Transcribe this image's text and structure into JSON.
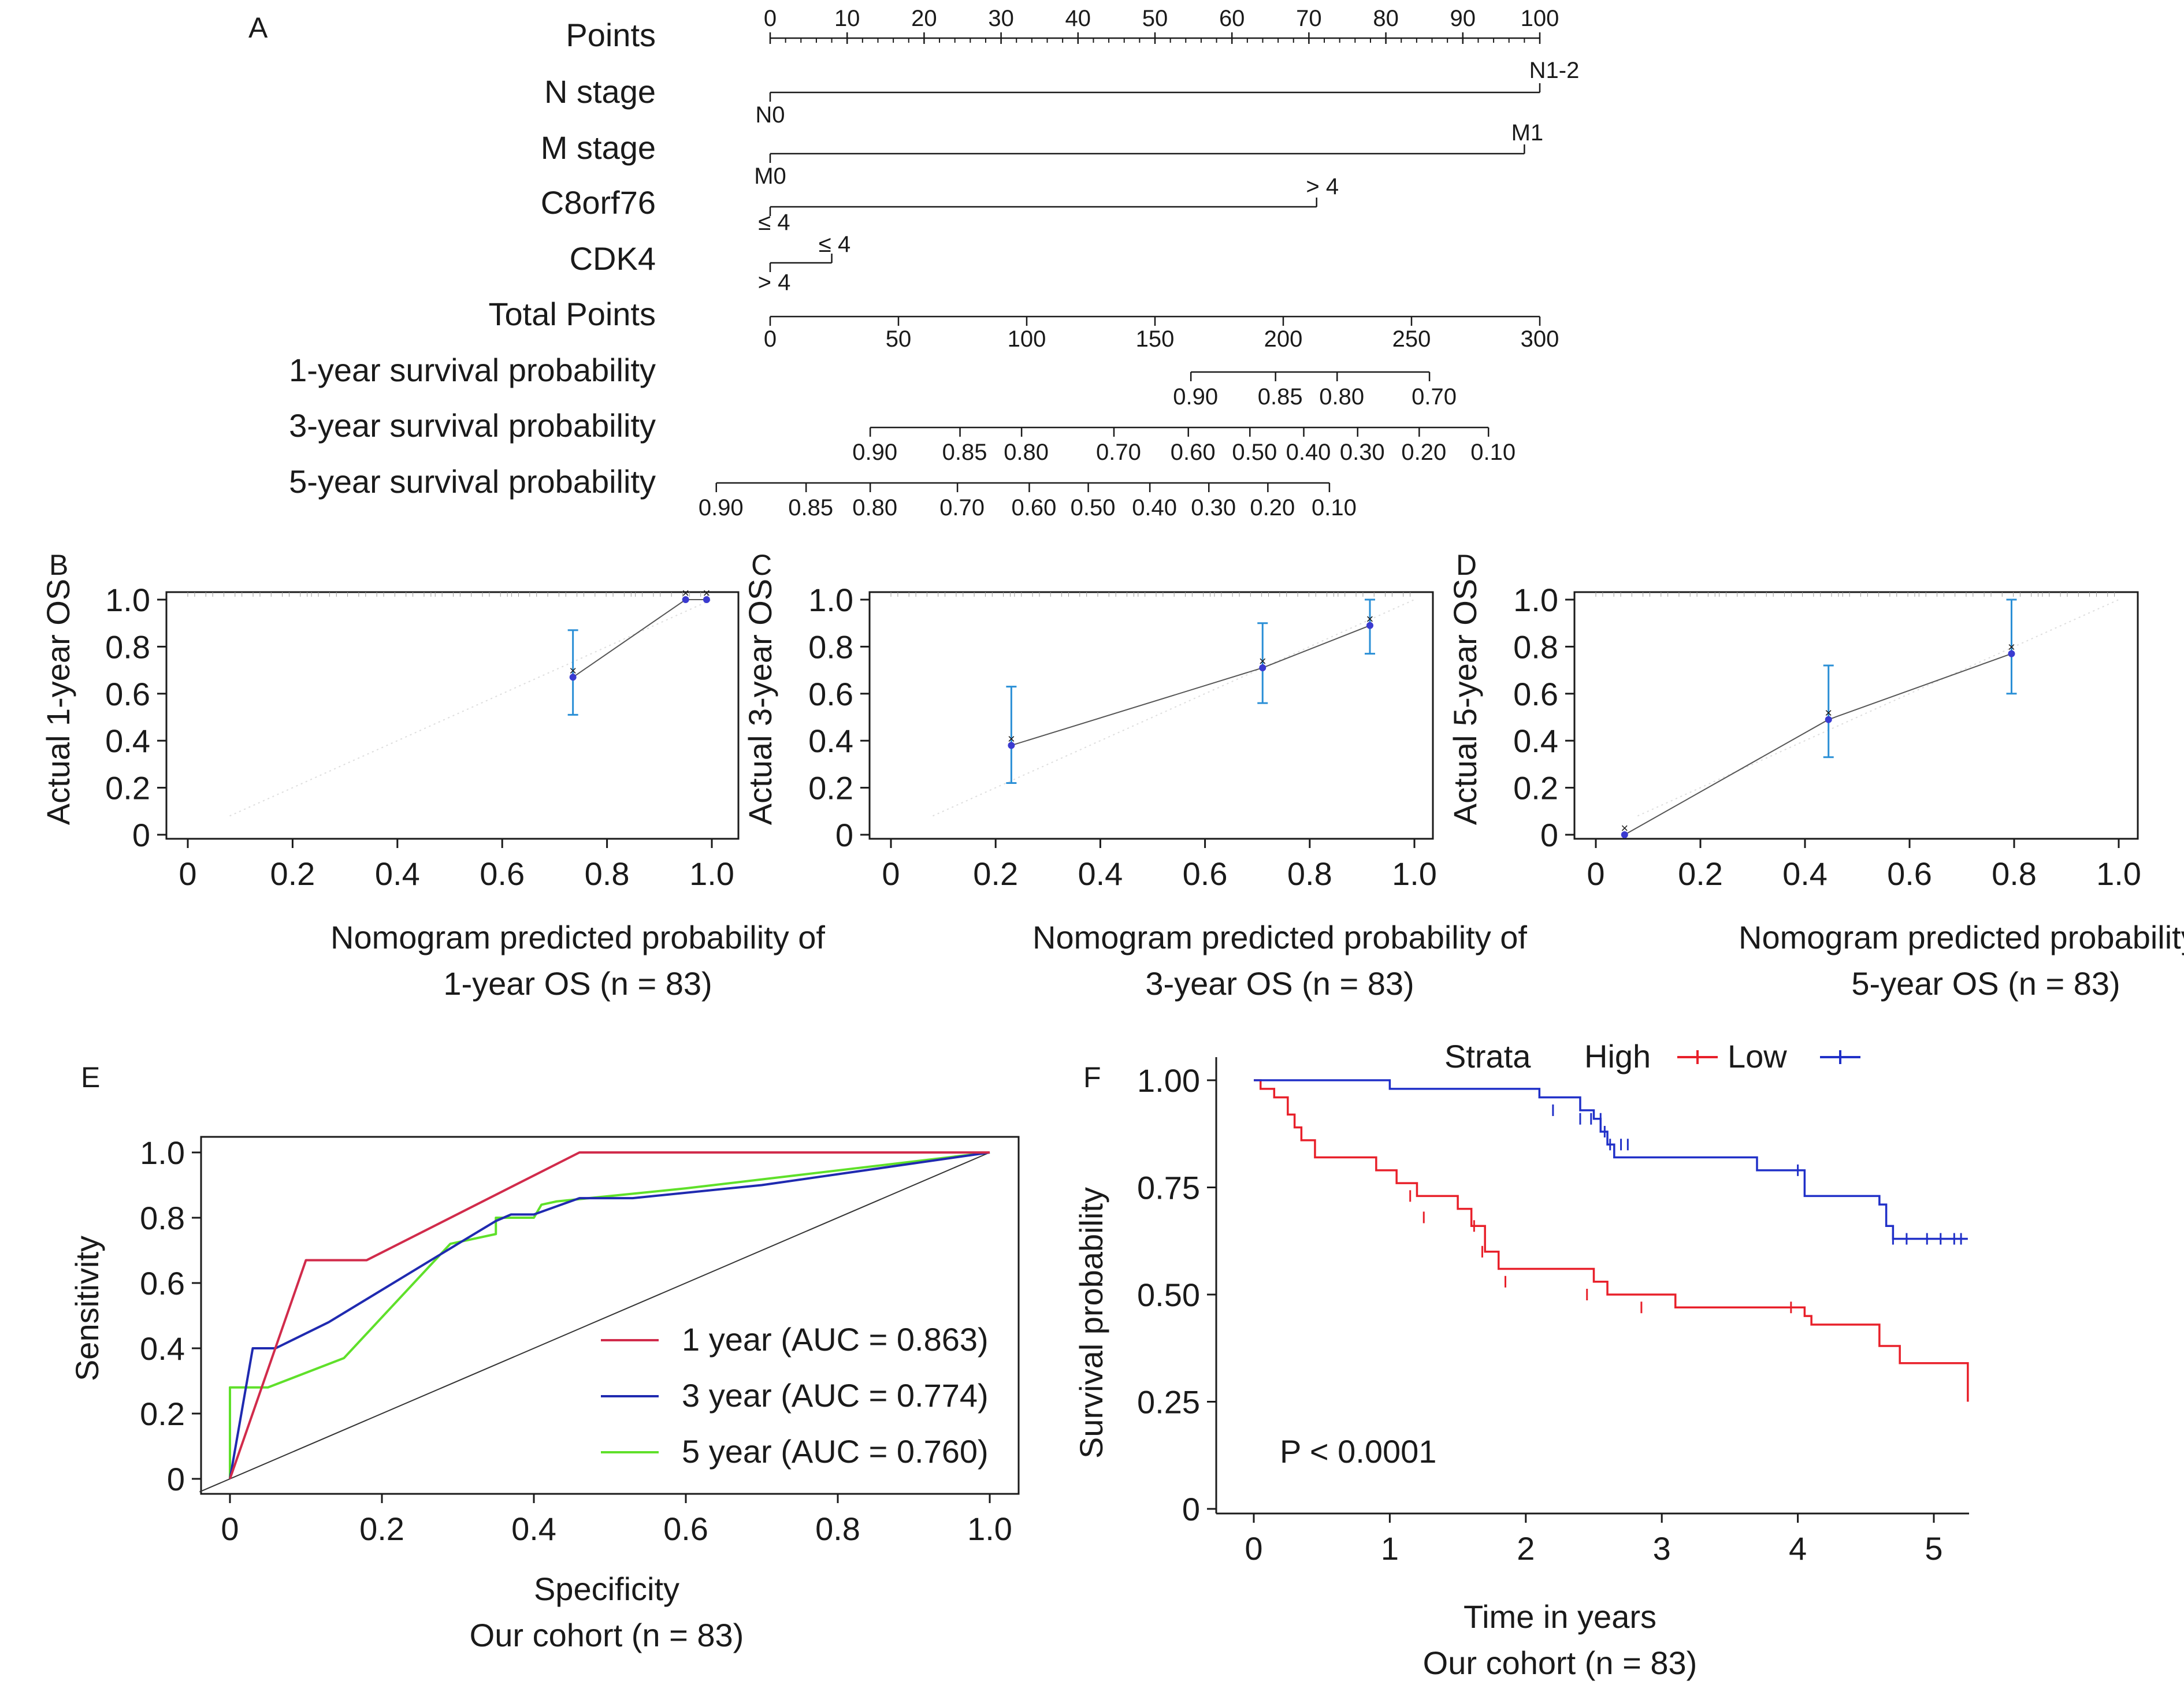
{
  "colors": {
    "ink": "#1a1a1a",
    "calib_bar": "#2a8fd6",
    "calib_point": "#3a3ad0",
    "roc_1yr": "#d12b4b",
    "roc_3yr": "#1f2ab0",
    "roc_5yr": "#5fe02a",
    "km_high": "#e8202a",
    "km_low": "#2030c8"
  },
  "panel_labels": {
    "a": "A",
    "b": "B",
    "c": "C",
    "d": "D",
    "e": "E",
    "f": "F"
  },
  "nomogram": {
    "rows": [
      "Points",
      "N stage",
      "M stage",
      "C8orf76",
      "CDK4",
      "Total Points",
      "1-year survival probability",
      "3-year survival probability",
      "5-year survival probability"
    ],
    "points_ticks": [
      "0",
      "10",
      "20",
      "30",
      "40",
      "50",
      "60",
      "70",
      "80",
      "90",
      "100"
    ],
    "n_stage": {
      "low": "N0",
      "high": "N1-2",
      "points_high": 100
    },
    "m_stage": {
      "low": "M0",
      "high": "M1",
      "points_high": 98
    },
    "c8orf76": {
      "low": "≤ 4",
      "high": "> 4",
      "points_high": 71
    },
    "cdk4": {
      "low": "> 4",
      "high": "≤ 4",
      "points_high": 8
    },
    "total_points_ticks": [
      "0",
      "50",
      "100",
      "150",
      "200",
      "250",
      "300"
    ],
    "total_points_values": [
      0,
      50,
      100,
      150,
      200,
      250,
      300
    ],
    "surv_1yr": {
      "labels": [
        "0.90",
        "0.85",
        "0.80",
        "0.70"
      ],
      "total_points": [
        164,
        197,
        221,
        257
      ]
    },
    "surv_3yr": {
      "labels": [
        "0.90",
        "0.85",
        "0.80",
        "0.70",
        "0.60",
        "0.50",
        "0.40",
        "0.30",
        "0.20",
        "0.10"
      ],
      "total_points": [
        39,
        74,
        98,
        134,
        163,
        187,
        208,
        229,
        253,
        280
      ]
    },
    "surv_5yr": {
      "labels": [
        "0.90",
        "0.85",
        "0.80",
        "0.70",
        "0.60",
        "0.50",
        "0.40",
        "0.30",
        "0.20",
        "0.10"
      ],
      "total_points": [
        -21,
        14,
        39,
        73,
        101,
        124,
        148,
        171,
        194,
        218
      ]
    }
  },
  "chart_data": [
    {
      "type": "scatter",
      "panel": "B",
      "xlabel_line1": "Nomogram predicted probability of",
      "xlabel_line2": "1-year OS (n = 83)",
      "ylabel": "Actual 1-year OS",
      "xticks": [
        "0",
        "0.2",
        "0.4",
        "0.6",
        "0.8",
        "1.0"
      ],
      "yticks": [
        "0",
        "0.2",
        "0.4",
        "0.6",
        "0.8",
        "1.0"
      ],
      "xlim": [
        0,
        1
      ],
      "ylim": [
        0,
        1
      ],
      "points": [
        {
          "x": 0.735,
          "y": 0.67,
          "lo": 0.51,
          "hi": 0.87
        },
        {
          "x": 0.95,
          "y": 1.0,
          "lo": 1.0,
          "hi": 1.0
        },
        {
          "x": 0.99,
          "y": 1.0,
          "lo": 1.0,
          "hi": 1.0
        }
      ]
    },
    {
      "type": "scatter",
      "panel": "C",
      "xlabel_line1": "Nomogram predicted probability of",
      "xlabel_line2": "3-year OS (n = 83)",
      "ylabel": "Actual 3-year OS",
      "xticks": [
        "0",
        "0.2",
        "0.4",
        "0.6",
        "0.8",
        "1.0"
      ],
      "yticks": [
        "0",
        "0.2",
        "0.4",
        "0.6",
        "0.8",
        "1.0"
      ],
      "xlim": [
        0,
        1
      ],
      "ylim": [
        0,
        1
      ],
      "points": [
        {
          "x": 0.23,
          "y": 0.38,
          "lo": 0.22,
          "hi": 0.63
        },
        {
          "x": 0.71,
          "y": 0.71,
          "lo": 0.56,
          "hi": 0.9
        },
        {
          "x": 0.915,
          "y": 0.89,
          "lo": 0.77,
          "hi": 1.0
        }
      ]
    },
    {
      "type": "scatter",
      "panel": "D",
      "xlabel_line1": "Nomogram predicted probability of",
      "xlabel_line2": "5-year OS (n = 83)",
      "ylabel": "Actual 5-year OS",
      "xticks": [
        "0",
        "0.2",
        "0.4",
        "0.6",
        "0.8",
        "1.0"
      ],
      "yticks": [
        "0",
        "0.2",
        "0.4",
        "0.6",
        "0.8",
        "1.0"
      ],
      "xlim": [
        0,
        1
      ],
      "ylim": [
        0,
        1
      ],
      "points": [
        {
          "x": 0.055,
          "y": 0.0,
          "lo": 0.0,
          "hi": 0.0
        },
        {
          "x": 0.445,
          "y": 0.49,
          "lo": 0.33,
          "hi": 0.72
        },
        {
          "x": 0.795,
          "y": 0.77,
          "lo": 0.6,
          "hi": 1.0
        }
      ]
    },
    {
      "type": "line",
      "panel": "E",
      "xlabel": "Specificity",
      "subtitle": "Our cohort (n = 83)",
      "ylabel": "Sensitivity",
      "xticks": [
        "0",
        "0.2",
        "0.4",
        "0.6",
        "0.8",
        "1.0"
      ],
      "yticks": [
        "0",
        "0.2",
        "0.4",
        "0.6",
        "0.8",
        "1.0"
      ],
      "xlim": [
        -0.04,
        1.04
      ],
      "ylim": [
        -0.04,
        1.04
      ],
      "legend_position": "bottom-right",
      "series": [
        {
          "name": "1 year (AUC = 0.863)",
          "x": [
            0,
            0.1,
            0.18,
            0.46,
            0.6,
            1.0
          ],
          "y": [
            0,
            0.67,
            0.67,
            1.0,
            1.0,
            1.0
          ]
        },
        {
          "name": "3 year (AUC = 0.774)",
          "x": [
            0,
            0.03,
            0.06,
            0.13,
            0.3,
            0.35,
            0.37,
            0.4,
            0.46,
            0.53,
            0.7,
            1.0
          ],
          "y": [
            0,
            0.4,
            0.4,
            0.48,
            0.72,
            0.79,
            0.81,
            0.81,
            0.86,
            0.86,
            0.9,
            1.0
          ]
        },
        {
          "name": "5 year (AUC = 0.760)",
          "x": [
            0,
            0,
            0.05,
            0.15,
            0.29,
            0.35,
            0.35,
            0.4,
            0.41,
            0.43,
            0.6,
            1.0
          ],
          "y": [
            0,
            0.28,
            0.28,
            0.37,
            0.72,
            0.75,
            0.8,
            0.8,
            0.84,
            0.85,
            0.89,
            1.0
          ]
        }
      ]
    },
    {
      "type": "line",
      "panel": "F",
      "xlabel": "Time in years",
      "subtitle": "Our cohort (n = 83)",
      "ylabel": "Survival probability",
      "xticks": [
        "0",
        "1",
        "2",
        "3",
        "4",
        "5"
      ],
      "yticks": [
        "0",
        "0.25",
        "0.50",
        "0.75",
        "1.00"
      ],
      "xlim": [
        -0.25,
        5.25
      ],
      "ylim": [
        -0.05,
        1.05
      ],
      "legend_title": "Strata",
      "annotation": "P < 0.0001",
      "series": [
        {
          "name": "High",
          "times": [
            0,
            0.05,
            0.15,
            0.25,
            0.3,
            0.35,
            0.45,
            0.9,
            1.05,
            1.2,
            1.5,
            1.6,
            1.7,
            1.8,
            2.5,
            2.6,
            3.1,
            4.0,
            4.05,
            4.1,
            4.6,
            4.75,
            5.25
          ],
          "surv": [
            1.0,
            0.98,
            0.96,
            0.92,
            0.89,
            0.86,
            0.82,
            0.79,
            0.76,
            0.73,
            0.7,
            0.66,
            0.6,
            0.56,
            0.53,
            0.5,
            0.47,
            0.47,
            0.45,
            0.43,
            0.38,
            0.34,
            0.25
          ],
          "censor_x": [
            1.15,
            1.25,
            1.62,
            1.68,
            1.85,
            2.45,
            2.85,
            3.95
          ],
          "censor_y": [
            0.73,
            0.68,
            0.66,
            0.6,
            0.53,
            0.5,
            0.47,
            0.47
          ]
        },
        {
          "name": "Low",
          "times": [
            0,
            1.0,
            2.1,
            2.4,
            2.5,
            2.55,
            2.6,
            2.65,
            3.7,
            4.05,
            4.6,
            4.65,
            4.7
          ],
          "surv": [
            1.0,
            0.98,
            0.96,
            0.93,
            0.91,
            0.88,
            0.85,
            0.82,
            0.79,
            0.73,
            0.71,
            0.66,
            0.63
          ],
          "censor_x": [
            2.2,
            2.4,
            2.48,
            2.55,
            2.58,
            2.62,
            2.7,
            2.75,
            4.0,
            4.7,
            4.8,
            4.95,
            5.05,
            5.15,
            5.2
          ],
          "censor_y": [
            0.93,
            0.91,
            0.91,
            0.91,
            0.88,
            0.85,
            0.85,
            0.85,
            0.79,
            0.63,
            0.63,
            0.63,
            0.63,
            0.63,
            0.63
          ]
        }
      ]
    }
  ]
}
